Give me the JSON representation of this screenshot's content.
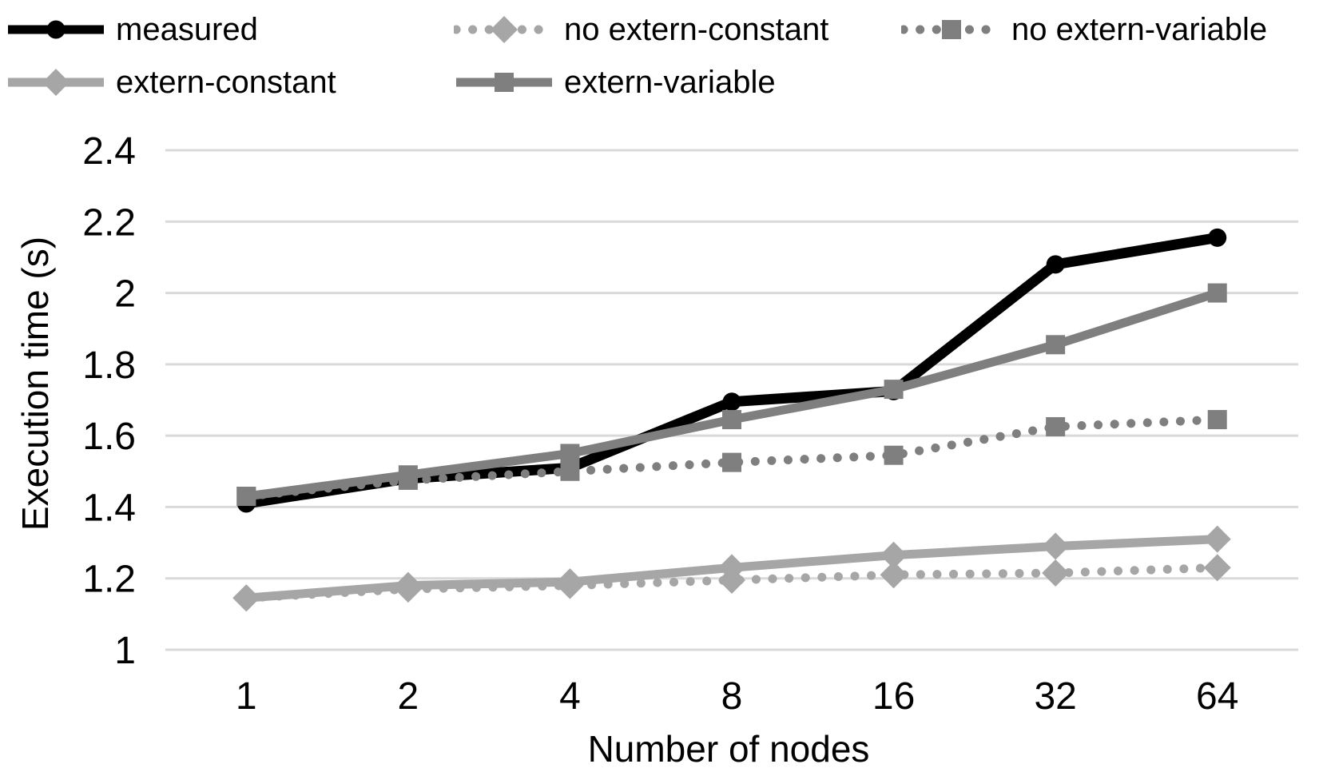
{
  "legend": {
    "position": "top",
    "items": [
      {
        "label": "measured"
      },
      {
        "label": "no extern-constant"
      },
      {
        "label": "no extern-variable"
      },
      {
        "label": "extern-constant"
      },
      {
        "label": "extern-variable"
      }
    ]
  },
  "chart_data": {
    "type": "line",
    "title": "",
    "xlabel": "Number of nodes",
    "ylabel": "Execution time (s)",
    "x_categories": [
      "1",
      "2",
      "4",
      "8",
      "16",
      "32",
      "64"
    ],
    "yticks": [
      "1",
      "1.2",
      "1.4",
      "1.6",
      "1.8",
      "2",
      "2.2",
      "2.4"
    ],
    "ylim": [
      1,
      2.4
    ],
    "grid": true,
    "gridline_color": "#d9d9d9",
    "legend_position": "top",
    "series": [
      {
        "name": "measured",
        "color": "#000000",
        "line": "solid",
        "marker": "circle",
        "values": [
          1.41,
          1.48,
          1.51,
          1.695,
          1.725,
          2.08,
          2.155
        ]
      },
      {
        "name": "no extern-constant",
        "color": "#a6a6a6",
        "line": "dotted",
        "marker": "diamond",
        "values": [
          1.145,
          1.17,
          1.18,
          1.195,
          1.21,
          1.215,
          1.23
        ]
      },
      {
        "name": "no extern-variable",
        "color": "#7f7f7f",
        "line": "dotted",
        "marker": "square",
        "values": [
          1.43,
          1.475,
          1.5,
          1.525,
          1.545,
          1.625,
          1.645
        ]
      },
      {
        "name": "extern-constant",
        "color": "#a6a6a6",
        "line": "solid",
        "marker": "diamond",
        "values": [
          1.145,
          1.18,
          1.19,
          1.23,
          1.265,
          1.29,
          1.31
        ]
      },
      {
        "name": "extern-variable",
        "color": "#7f7f7f",
        "line": "solid",
        "marker": "square",
        "values": [
          1.43,
          1.49,
          1.55,
          1.645,
          1.73,
          1.855,
          2.0
        ]
      }
    ]
  }
}
